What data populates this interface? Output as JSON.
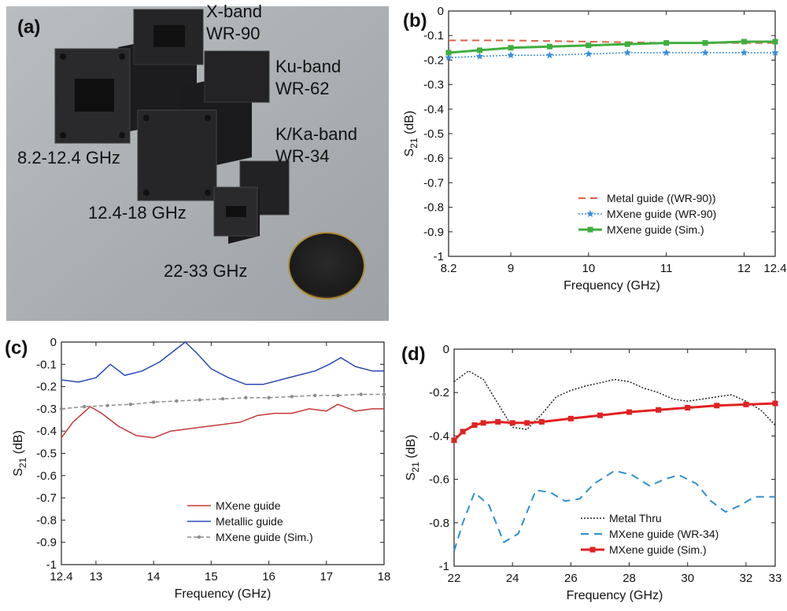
{
  "photo": {
    "panel_label": "(a)",
    "labels": [
      {
        "key": "x_band",
        "text": "X-band"
      },
      {
        "key": "wr90",
        "text": "WR-90"
      },
      {
        "key": "ku_band",
        "text": "Ku-band"
      },
      {
        "key": "wr62",
        "text": "WR-62"
      },
      {
        "key": "kka_band",
        "text": "K/Ka-band"
      },
      {
        "key": "wr34",
        "text": "WR-34"
      },
      {
        "key": "range1",
        "text": "8.2-12.4 GHz"
      },
      {
        "key": "range2",
        "text": "12.4-18 GHz"
      },
      {
        "key": "range3",
        "text": "22-33 GHz"
      }
    ],
    "colors": {
      "background": "#a9aeb2",
      "guide": "#1a1a1c",
      "coin_gold": "#c8a24a"
    }
  },
  "chart_data": [
    {
      "id": "b",
      "panel_label": "(b)",
      "type": "line",
      "xlabel": "Frequency (GHz)",
      "ylabel_main": "S",
      "ylabel_sub": "21",
      "ylabel_unit": " (dB)",
      "xlim": [
        8.2,
        12.4
      ],
      "ylim": [
        -1,
        0
      ],
      "xticks": [
        8.2,
        9,
        10,
        11,
        12,
        12.4
      ],
      "xtick_labels": [
        "8.2",
        "9",
        "10",
        "11",
        "12",
        "12.4"
      ],
      "yticks": [
        0,
        -0.1,
        -0.2,
        -0.3,
        -0.4,
        -0.5,
        -0.6,
        -0.7,
        -0.8,
        -0.9,
        -1
      ],
      "ytick_labels": [
        "0",
        "-0.1",
        "-0.2",
        "-0.3",
        "-0.4",
        "-0.5",
        "-0.6",
        "-0.7",
        "-0.8",
        "-0.9",
        "-1"
      ],
      "grid": false,
      "legend_position": "bottom-right",
      "series": [
        {
          "name": "Metal guide ((WR-90))",
          "color": "#e0604a",
          "dash": "9,6",
          "width": 2,
          "marker": "none",
          "x": [
            8.2,
            9,
            10,
            11,
            12,
            12.4
          ],
          "y": [
            -0.12,
            -0.12,
            -0.125,
            -0.13,
            -0.13,
            -0.13
          ]
        },
        {
          "name": "MXene guide (WR-90)",
          "color": "#3a8fd8",
          "dash": "2,2",
          "width": 1.5,
          "marker": "star",
          "x": [
            8.2,
            8.6,
            9,
            9.5,
            10,
            10.5,
            11,
            11.5,
            12,
            12.4
          ],
          "y": [
            -0.19,
            -0.185,
            -0.18,
            -0.18,
            -0.175,
            -0.17,
            -0.17,
            -0.17,
            -0.17,
            -0.17
          ]
        },
        {
          "name": "MXene guide (Sim.)",
          "color": "#3fae3f",
          "dash": "",
          "width": 3,
          "marker": "square",
          "x": [
            8.2,
            8.6,
            9,
            9.5,
            10,
            10.5,
            11,
            11.5,
            12,
            12.4
          ],
          "y": [
            -0.17,
            -0.16,
            -0.15,
            -0.145,
            -0.14,
            -0.135,
            -0.13,
            -0.13,
            -0.125,
            -0.125
          ]
        }
      ]
    },
    {
      "id": "c",
      "panel_label": "(c)",
      "type": "line",
      "xlabel": "Frequency (GHz)",
      "ylabel_main": "S",
      "ylabel_sub": "21",
      "ylabel_unit": " (dB)",
      "xlim": [
        12.4,
        18
      ],
      "ylim": [
        -1,
        0
      ],
      "xticks": [
        12.4,
        13,
        14,
        15,
        16,
        17,
        18
      ],
      "xtick_labels": [
        "12.4",
        "13",
        "14",
        "15",
        "16",
        "17",
        "18"
      ],
      "yticks": [
        0,
        -0.1,
        -0.2,
        -0.3,
        -0.4,
        -0.5,
        -0.6,
        -0.7,
        -0.8,
        -0.9,
        -1
      ],
      "ytick_labels": [
        "0",
        "-0.1",
        "-0.2",
        "-0.3",
        "-0.4",
        "-0.5",
        "-0.6",
        "-0.7",
        "-0.8",
        "-0.9",
        "-1"
      ],
      "grid": false,
      "legend_position": "bottom-right",
      "series": [
        {
          "name": "MXene guide",
          "color": "#c8383a",
          "dash": "",
          "width": 1.5,
          "marker": "none",
          "x": [
            12.4,
            12.6,
            12.9,
            13.1,
            13.4,
            13.7,
            14.0,
            14.3,
            14.6,
            14.9,
            15.2,
            15.5,
            15.8,
            16.1,
            16.4,
            16.7,
            17.0,
            17.2,
            17.5,
            17.8,
            18.0
          ],
          "y": [
            -0.43,
            -0.36,
            -0.29,
            -0.32,
            -0.38,
            -0.42,
            -0.43,
            -0.4,
            -0.39,
            -0.38,
            -0.37,
            -0.36,
            -0.33,
            -0.32,
            -0.32,
            -0.3,
            -0.31,
            -0.28,
            -0.31,
            -0.3,
            -0.3
          ]
        },
        {
          "name": "Metallic guide",
          "color": "#2a4ab8",
          "dash": "",
          "width": 1.5,
          "marker": "none",
          "x": [
            12.4,
            12.7,
            13.0,
            13.25,
            13.5,
            13.8,
            14.1,
            14.4,
            14.55,
            14.75,
            15.0,
            15.3,
            15.6,
            15.9,
            16.2,
            16.5,
            16.8,
            17.05,
            17.25,
            17.5,
            17.8,
            18.0
          ],
          "y": [
            -0.17,
            -0.18,
            -0.16,
            -0.1,
            -0.15,
            -0.13,
            -0.09,
            -0.03,
            0,
            -0.05,
            -0.12,
            -0.16,
            -0.19,
            -0.19,
            -0.17,
            -0.15,
            -0.13,
            -0.1,
            -0.07,
            -0.11,
            -0.13,
            -0.13
          ]
        },
        {
          "name": "MXene guide (Sim.)",
          "color": "#8e8e8e",
          "dash": "5,3",
          "width": 1.5,
          "marker": "dot",
          "x": [
            12.4,
            12.8,
            13.2,
            13.6,
            14.0,
            14.4,
            14.8,
            15.2,
            15.6,
            16.0,
            16.4,
            16.8,
            17.2,
            17.6,
            18.0
          ],
          "y": [
            -0.3,
            -0.29,
            -0.285,
            -0.28,
            -0.27,
            -0.265,
            -0.26,
            -0.255,
            -0.25,
            -0.25,
            -0.245,
            -0.24,
            -0.24,
            -0.235,
            -0.235
          ]
        }
      ]
    },
    {
      "id": "d",
      "panel_label": "(d)",
      "type": "line",
      "xlabel": "Frequency (GHz)",
      "ylabel_main": "S",
      "ylabel_sub": "21",
      "ylabel_unit": " (dB)",
      "xlim": [
        22,
        33
      ],
      "ylim": [
        -1,
        0
      ],
      "xticks": [
        22,
        24,
        26,
        28,
        30,
        32,
        33
      ],
      "xtick_labels": [
        "22",
        "24",
        "26",
        "28",
        "30",
        "32",
        "33"
      ],
      "yticks": [
        0,
        -0.2,
        -0.4,
        -0.6,
        -0.8,
        -1
      ],
      "ytick_labels": [
        "0",
        "-0.2",
        "-0.4",
        "-0.6",
        "-0.8",
        "-1"
      ],
      "grid": false,
      "legend_position": "bottom-right",
      "series": [
        {
          "name": "Metal Thru",
          "color": "#222222",
          "dash": "2,2",
          "width": 1.5,
          "marker": "none",
          "x": [
            22,
            22.5,
            23,
            23.5,
            24,
            24.5,
            25,
            25.5,
            26,
            26.5,
            27,
            27.5,
            28,
            28.5,
            29,
            29.5,
            30,
            30.5,
            31,
            31.5,
            32,
            32.5,
            33
          ],
          "y": [
            -0.15,
            -0.1,
            -0.14,
            -0.25,
            -0.36,
            -0.37,
            -0.3,
            -0.22,
            -0.19,
            -0.17,
            -0.155,
            -0.14,
            -0.15,
            -0.18,
            -0.2,
            -0.23,
            -0.24,
            -0.23,
            -0.22,
            -0.21,
            -0.24,
            -0.28,
            -0.35
          ]
        },
        {
          "name": "MXene guide (WR-34)",
          "color": "#2f8fd0",
          "dash": "10,7",
          "width": 2,
          "marker": "none",
          "x": [
            22,
            22.3,
            22.7,
            23.2,
            23.7,
            24.2,
            24.8,
            25.3,
            25.8,
            26.3,
            26.8,
            27.5,
            28.1,
            28.7,
            29.2,
            29.7,
            30.3,
            30.8,
            31.3,
            31.8,
            32.3,
            33
          ],
          "y": [
            -0.93,
            -0.8,
            -0.66,
            -0.72,
            -0.89,
            -0.85,
            -0.65,
            -0.66,
            -0.7,
            -0.69,
            -0.62,
            -0.56,
            -0.58,
            -0.63,
            -0.6,
            -0.58,
            -0.62,
            -0.7,
            -0.75,
            -0.72,
            -0.68,
            -0.68
          ]
        },
        {
          "name": "MXene guide (Sim.)",
          "color": "#e02222",
          "dash": "",
          "width": 3,
          "marker": "square",
          "x": [
            22,
            22.3,
            22.7,
            23,
            23.5,
            24,
            24.5,
            25,
            26,
            27,
            28,
            29,
            30,
            31,
            32,
            33
          ],
          "y": [
            -0.42,
            -0.38,
            -0.35,
            -0.34,
            -0.335,
            -0.34,
            -0.34,
            -0.335,
            -0.32,
            -0.305,
            -0.29,
            -0.28,
            -0.27,
            -0.26,
            -0.255,
            -0.25
          ]
        }
      ]
    }
  ]
}
